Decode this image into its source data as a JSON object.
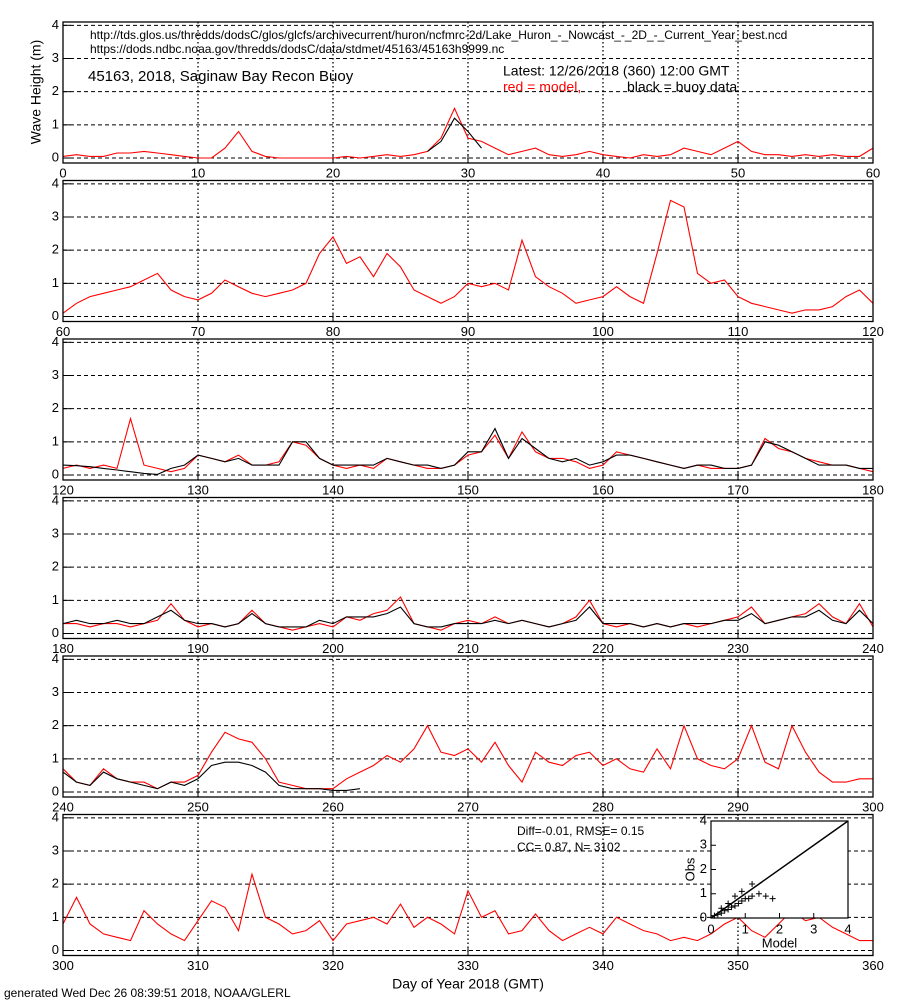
{
  "chart_data": [
    {
      "type": "line",
      "ylabel": "Wave Height (m)",
      "source_urls": [
        "http://tds.glos.us/thredds/dodsC/glos/glcfs/archivecurrent/huron/ncfmrc-2d/Lake_Huron_-_Nowcast_-_2D_-_Current_Year_best.ncd",
        "https://dods.ndbc.noaa.gov/thredds/dodsC/data/stdmet/45163/45163h9999.nc"
      ],
      "title": "45163, 2018, Saginaw Bay Recon Buoy",
      "latest": "Latest: 12/26/2018 (360) 12:00 GMT",
      "x": [
        0,
        1,
        2,
        3,
        4,
        5,
        6,
        7,
        8,
        9,
        10,
        11,
        12,
        13,
        14,
        15,
        16,
        17,
        18,
        19,
        20,
        21,
        22,
        23,
        24,
        25,
        26,
        27,
        28,
        29,
        30,
        31,
        32,
        33,
        34,
        35,
        36,
        37,
        38,
        39,
        40,
        41,
        42,
        43,
        44,
        45,
        46,
        47,
        48,
        49,
        50,
        51,
        52,
        53,
        54,
        55,
        56,
        57,
        58,
        59,
        60
      ],
      "xlim": [
        0,
        60
      ],
      "xticks": [
        0,
        10,
        20,
        30,
        40,
        50,
        60
      ],
      "ylim": [
        -0.15,
        4.1
      ],
      "yticks": [
        0,
        1,
        2,
        3,
        4
      ],
      "series": [
        {
          "name": "red = model,",
          "color": "#ff0000",
          "values": [
            0.05,
            0.1,
            0.05,
            0.05,
            0.15,
            0.15,
            0.2,
            0.15,
            0.1,
            0.05,
            0,
            0,
            0.3,
            0.8,
            0.2,
            0.05,
            0,
            0,
            0,
            0,
            0,
            0.05,
            0,
            0.05,
            0.1,
            0.05,
            0.1,
            0.2,
            0.6,
            1.5,
            0.6,
            0.5,
            0.3,
            0.1,
            0.2,
            0.3,
            0.1,
            0.05,
            0.1,
            0.2,
            0.1,
            0.05,
            0,
            0.1,
            0.05,
            0.1,
            0.3,
            0.2,
            0.1,
            0.3,
            0.5,
            0.2,
            0.1,
            0.1,
            0.05,
            0.1,
            0.05,
            0.1,
            0.05,
            0.05,
            0.3
          ]
        },
        {
          "name": "black = buoy data",
          "color": "#000000",
          "values": [
            null,
            null,
            null,
            null,
            null,
            null,
            null,
            null,
            null,
            null,
            null,
            null,
            null,
            null,
            null,
            null,
            null,
            null,
            null,
            null,
            null,
            null,
            null,
            null,
            null,
            null,
            null,
            0.2,
            0.5,
            1.2,
            0.8,
            0.3,
            null,
            null,
            null,
            null,
            null,
            null,
            null,
            null,
            null,
            null,
            null,
            null,
            null,
            null,
            null,
            null,
            null,
            null,
            null,
            null,
            null,
            null,
            null,
            null,
            null,
            null,
            null,
            null,
            null
          ]
        }
      ]
    },
    {
      "type": "line",
      "x": [
        60,
        61,
        62,
        63,
        64,
        65,
        66,
        67,
        68,
        69,
        70,
        71,
        72,
        73,
        74,
        75,
        76,
        77,
        78,
        79,
        80,
        81,
        82,
        83,
        84,
        85,
        86,
        87,
        88,
        89,
        90,
        91,
        92,
        93,
        94,
        95,
        96,
        97,
        98,
        99,
        100,
        101,
        102,
        103,
        104,
        105,
        106,
        107,
        108,
        109,
        110,
        111,
        112,
        113,
        114,
        115,
        116,
        117,
        118,
        119,
        120
      ],
      "xlim": [
        60,
        120
      ],
      "xticks": [
        60,
        70,
        80,
        90,
        100,
        110,
        120
      ],
      "ylim": [
        -0.15,
        4.1
      ],
      "yticks": [
        0,
        1,
        2,
        3,
        4
      ],
      "series": [
        {
          "color": "#ff0000",
          "values": [
            0.1,
            0.4,
            0.6,
            0.7,
            0.8,
            0.9,
            1.1,
            1.3,
            0.8,
            0.6,
            0.5,
            0.7,
            1.1,
            0.9,
            0.7,
            0.6,
            0.7,
            0.8,
            1.0,
            1.9,
            2.4,
            1.6,
            1.8,
            1.2,
            1.9,
            1.5,
            0.8,
            0.6,
            0.4,
            0.6,
            1.0,
            0.9,
            1.0,
            0.8,
            2.3,
            1.2,
            0.9,
            0.7,
            0.4,
            0.5,
            0.6,
            0.9,
            0.6,
            0.4,
            1.9,
            3.5,
            3.3,
            1.3,
            1.0,
            1.1,
            0.6,
            0.4,
            0.3,
            0.2,
            0.1,
            0.2,
            0.2,
            0.3,
            0.6,
            0.8,
            0.4
          ]
        }
      ]
    },
    {
      "type": "line",
      "x": [
        120,
        121,
        122,
        123,
        124,
        125,
        126,
        127,
        128,
        129,
        130,
        131,
        132,
        133,
        134,
        135,
        136,
        137,
        138,
        139,
        140,
        141,
        142,
        143,
        144,
        145,
        146,
        147,
        148,
        149,
        150,
        151,
        152,
        153,
        154,
        155,
        156,
        157,
        158,
        159,
        160,
        161,
        162,
        163,
        164,
        165,
        166,
        167,
        168,
        169,
        170,
        171,
        172,
        173,
        174,
        175,
        176,
        177,
        178,
        179,
        180
      ],
      "xlim": [
        120,
        180
      ],
      "xticks": [
        120,
        130,
        140,
        150,
        160,
        170,
        180
      ],
      "ylim": [
        -0.15,
        4.1
      ],
      "yticks": [
        0,
        1,
        2,
        3,
        4
      ],
      "series": [
        {
          "color": "#ff0000",
          "values": [
            0.2,
            0.3,
            0.2,
            0.3,
            0.2,
            1.7,
            0.3,
            0.2,
            0.1,
            0.2,
            0.6,
            0.5,
            0.4,
            0.6,
            0.3,
            0.3,
            0.4,
            1.0,
            0.9,
            0.5,
            0.3,
            0.2,
            0.3,
            0.2,
            0.5,
            0.4,
            0.3,
            0.2,
            0.2,
            0.3,
            0.6,
            0.7,
            1.2,
            0.5,
            1.3,
            0.7,
            0.5,
            0.5,
            0.4,
            0.2,
            0.3,
            0.7,
            0.6,
            0.5,
            0.4,
            0.3,
            0.2,
            0.3,
            0.2,
            0.2,
            0.2,
            0.3,
            1.1,
            0.8,
            0.7,
            0.5,
            0.4,
            0.3,
            0.3,
            0.2,
            0.1
          ]
        },
        {
          "color": "#000000",
          "values": [
            0.3,
            0.28,
            0.25,
            0.2,
            0.15,
            0.1,
            0.05,
            0.02,
            0.2,
            0.3,
            0.6,
            0.5,
            0.4,
            0.5,
            0.3,
            0.3,
            0.3,
            1.0,
            1.0,
            0.5,
            0.3,
            0.3,
            0.3,
            0.3,
            0.5,
            0.4,
            0.3,
            0.3,
            0.2,
            0.3,
            0.7,
            0.7,
            1.4,
            0.5,
            1.1,
            0.8,
            0.5,
            0.4,
            0.5,
            0.3,
            0.4,
            0.6,
            0.6,
            0.5,
            0.4,
            0.3,
            0.2,
            0.3,
            0.3,
            0.2,
            0.2,
            0.3,
            1.0,
            0.9,
            0.7,
            0.5,
            0.3,
            0.3,
            0.3,
            0.2,
            0.2
          ]
        }
      ]
    },
    {
      "type": "line",
      "x": [
        180,
        181,
        182,
        183,
        184,
        185,
        186,
        187,
        188,
        189,
        190,
        191,
        192,
        193,
        194,
        195,
        196,
        197,
        198,
        199,
        200,
        201,
        202,
        203,
        204,
        205,
        206,
        207,
        208,
        209,
        210,
        211,
        212,
        213,
        214,
        215,
        216,
        217,
        218,
        219,
        220,
        221,
        222,
        223,
        224,
        225,
        226,
        227,
        228,
        229,
        230,
        231,
        232,
        233,
        234,
        235,
        236,
        237,
        238,
        239,
        240
      ],
      "xlim": [
        180,
        240
      ],
      "xticks": [
        180,
        190,
        200,
        210,
        220,
        230,
        240
      ],
      "ylim": [
        -0.15,
        4.1
      ],
      "yticks": [
        0,
        1,
        2,
        3,
        4
      ],
      "series": [
        {
          "color": "#ff0000",
          "values": [
            0.3,
            0.3,
            0.2,
            0.3,
            0.3,
            0.2,
            0.3,
            0.4,
            0.9,
            0.4,
            0.2,
            0.3,
            0.2,
            0.3,
            0.7,
            0.3,
            0.2,
            0.1,
            0.2,
            0.3,
            0.2,
            0.5,
            0.4,
            0.6,
            0.7,
            1.1,
            0.3,
            0.2,
            0.1,
            0.3,
            0.4,
            0.3,
            0.5,
            0.3,
            0.4,
            0.3,
            0.2,
            0.3,
            0.5,
            1.0,
            0.3,
            0.2,
            0.3,
            0.2,
            0.3,
            0.2,
            0.3,
            0.2,
            0.3,
            0.4,
            0.5,
            0.8,
            0.3,
            0.4,
            0.5,
            0.6,
            0.9,
            0.5,
            0.3,
            0.9,
            0.2
          ]
        },
        {
          "color": "#000000",
          "values": [
            0.3,
            0.4,
            0.3,
            0.3,
            0.4,
            0.3,
            0.3,
            0.5,
            0.7,
            0.4,
            0.3,
            0.3,
            0.2,
            0.3,
            0.6,
            0.3,
            0.2,
            0.2,
            0.2,
            0.4,
            0.3,
            0.5,
            0.5,
            0.5,
            0.6,
            0.8,
            0.3,
            0.2,
            0.2,
            0.3,
            0.3,
            0.3,
            0.4,
            0.3,
            0.4,
            0.3,
            0.2,
            0.3,
            0.4,
            0.8,
            0.3,
            0.3,
            0.3,
            0.2,
            0.3,
            0.2,
            0.3,
            0.3,
            0.3,
            0.4,
            0.4,
            0.6,
            0.3,
            0.4,
            0.5,
            0.5,
            0.7,
            0.4,
            0.3,
            0.7,
            0.3
          ]
        }
      ]
    },
    {
      "type": "line",
      "x": [
        240,
        241,
        242,
        243,
        244,
        245,
        246,
        247,
        248,
        249,
        250,
        251,
        252,
        253,
        254,
        255,
        256,
        257,
        258,
        259,
        260,
        261,
        262,
        263,
        264,
        265,
        266,
        267,
        268,
        269,
        270,
        271,
        272,
        273,
        274,
        275,
        276,
        277,
        278,
        279,
        280,
        281,
        282,
        283,
        284,
        285,
        286,
        287,
        288,
        289,
        290,
        291,
        292,
        293,
        294,
        295,
        296,
        297,
        298,
        299,
        300
      ],
      "xlim": [
        240,
        300
      ],
      "xticks": [
        240,
        250,
        260,
        270,
        280,
        290,
        300
      ],
      "ylim": [
        -0.15,
        4.1
      ],
      "yticks": [
        0,
        1,
        2,
        3,
        4
      ],
      "series": [
        {
          "color": "#ff0000",
          "values": [
            0.7,
            0.3,
            0.2,
            0.7,
            0.4,
            0.3,
            0.3,
            0.1,
            0.3,
            0.3,
            0.5,
            1.2,
            1.8,
            1.6,
            1.5,
            1.0,
            0.3,
            0.2,
            0.1,
            0.1,
            0.1,
            0.4,
            0.6,
            0.8,
            1.1,
            0.9,
            1.3,
            2.0,
            1.2,
            1.1,
            1.3,
            0.9,
            1.5,
            0.8,
            0.3,
            1.2,
            0.9,
            0.8,
            1.1,
            1.2,
            0.8,
            1.0,
            0.7,
            0.6,
            1.3,
            0.7,
            2.0,
            1.0,
            0.8,
            0.7,
            1.0,
            2.0,
            0.9,
            0.7,
            2.0,
            1.2,
            0.6,
            0.3,
            0.3,
            0.4,
            0.4
          ]
        },
        {
          "color": "#000000",
          "values": [
            0.6,
            0.3,
            0.2,
            0.6,
            0.4,
            0.3,
            0.2,
            0.1,
            0.3,
            0.2,
            0.4,
            0.8,
            0.9,
            0.9,
            0.8,
            0.6,
            0.2,
            0.1,
            0.1,
            0.1,
            0.05,
            0.05,
            0.1,
            null,
            null,
            null,
            null,
            null,
            null,
            null,
            null,
            null,
            null,
            null,
            null,
            null,
            null,
            null,
            null,
            null,
            null,
            null,
            null,
            null,
            null,
            null,
            null,
            null,
            null,
            null,
            null,
            null,
            null,
            null,
            null,
            null,
            null,
            null,
            null,
            null,
            null
          ]
        }
      ]
    },
    {
      "type": "line",
      "xlabel": "Day of Year 2018 (GMT)",
      "stats": [
        "Diff=-0.01,  RMSE= 0.15",
        "CC= 0.87,  N= 3102"
      ],
      "footnote": "generated Wed Dec 26 08:39:51 2018, NOAA/GLERL",
      "x": [
        300,
        301,
        302,
        303,
        304,
        305,
        306,
        307,
        308,
        309,
        310,
        311,
        312,
        313,
        314,
        315,
        316,
        317,
        318,
        319,
        320,
        321,
        322,
        323,
        324,
        325,
        326,
        327,
        328,
        329,
        330,
        331,
        332,
        333,
        334,
        335,
        336,
        337,
        338,
        339,
        340,
        341,
        342,
        343,
        344,
        345,
        346,
        347,
        348,
        349,
        350,
        351,
        352,
        353,
        354,
        355,
        356,
        357,
        358,
        359,
        360
      ],
      "xlim": [
        300,
        360
      ],
      "xticks": [
        300,
        310,
        320,
        330,
        340,
        350,
        360
      ],
      "ylim": [
        -0.15,
        4.1
      ],
      "yticks": [
        0,
        1,
        2,
        3,
        4
      ],
      "series": [
        {
          "color": "#ff0000",
          "values": [
            0.8,
            1.6,
            0.8,
            0.5,
            0.4,
            0.3,
            1.2,
            0.8,
            0.5,
            0.3,
            0.9,
            1.5,
            1.3,
            0.6,
            2.3,
            1.0,
            0.8,
            0.5,
            0.6,
            0.9,
            0.3,
            0.8,
            0.9,
            1.0,
            0.8,
            1.4,
            0.7,
            1.0,
            0.8,
            0.5,
            1.8,
            1.0,
            1.2,
            0.5,
            0.6,
            1.1,
            0.6,
            0.3,
            0.5,
            0.7,
            0.5,
            1.0,
            0.8,
            0.6,
            0.5,
            0.3,
            0.4,
            0.3,
            0.5,
            0.8,
            1.0,
            0.6,
            0.4,
            0.8,
            1.2,
            0.9,
            1.0,
            0.7,
            0.5,
            0.3,
            0.3
          ]
        }
      ]
    },
    {
      "type": "scatter",
      "xlabel": "Model",
      "ylabel": "Obs",
      "identity_line": true,
      "color": "#000000",
      "x": [
        0.1,
        0.2,
        0.3,
        0.4,
        0.5,
        0.6,
        0.7,
        0.8,
        0.9,
        1.0,
        1.1,
        1.2,
        1.4,
        1.6,
        1.8,
        0.3,
        0.5,
        0.7,
        0.9,
        1.2
      ],
      "y": [
        0.1,
        0.15,
        0.2,
        0.3,
        0.35,
        0.45,
        0.5,
        0.6,
        0.7,
        0.8,
        0.8,
        0.9,
        1.0,
        0.9,
        0.8,
        0.4,
        0.6,
        0.9,
        1.1,
        1.4
      ],
      "xlim": [
        0,
        4
      ],
      "ylim": [
        0,
        4
      ],
      "xticks": [
        0,
        1,
        2,
        3,
        4
      ],
      "yticks": [
        0,
        1,
        2,
        3,
        4
      ]
    }
  ]
}
